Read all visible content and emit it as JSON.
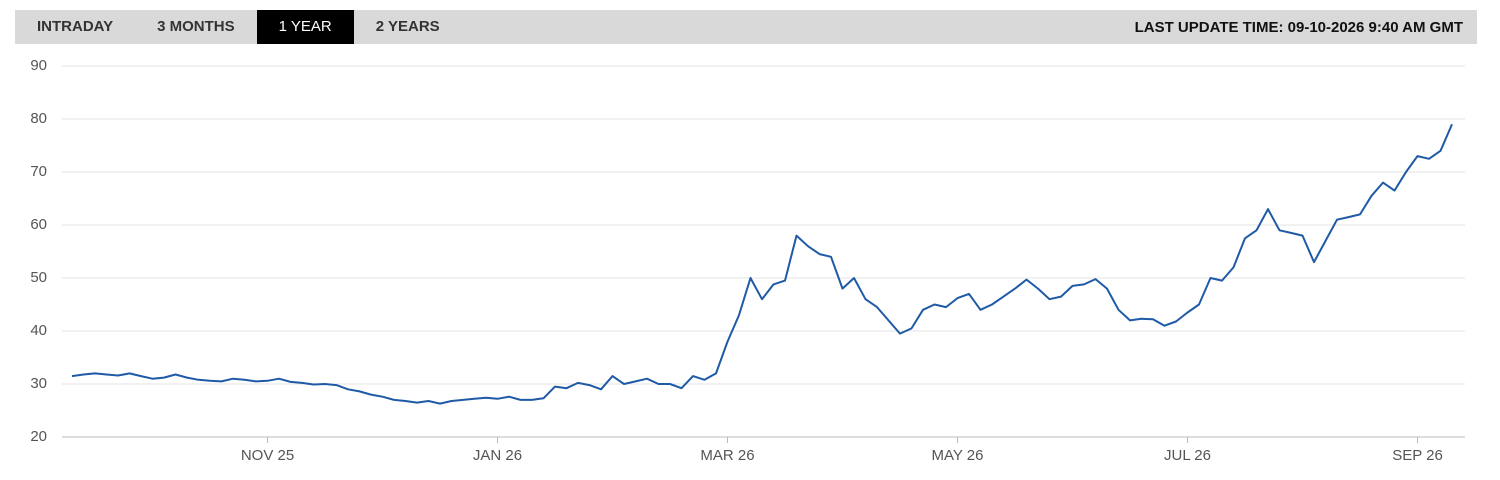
{
  "tabs": [
    "INTRADAY",
    "3 MONTHS",
    "1 YEAR",
    "2 YEARS"
  ],
  "active_tab": 2,
  "last_update": "LAST UPDATE TIME: 09-10-2026 9:40 AM GMT",
  "chart_data": {
    "type": "line",
    "color": "#1f5aa6",
    "grid": true,
    "ylim": [
      20,
      90
    ],
    "yticks": [
      20,
      30,
      40,
      50,
      60,
      70,
      80,
      90
    ],
    "categories": [
      null,
      null,
      null,
      null,
      null,
      null,
      null,
      null,
      null,
      null,
      null,
      null,
      null,
      null,
      null,
      null,
      null,
      "NOV 25",
      null,
      null,
      null,
      null,
      null,
      null,
      null,
      null,
      null,
      null,
      null,
      null,
      null,
      null,
      null,
      null,
      null,
      null,
      null,
      "JAN 26",
      null,
      null,
      null,
      null,
      null,
      null,
      null,
      null,
      null,
      null,
      null,
      null,
      null,
      null,
      null,
      null,
      null,
      null,
      null,
      "MAR 26",
      null,
      null,
      null,
      null,
      null,
      null,
      null,
      null,
      null,
      null,
      null,
      null,
      null,
      null,
      null,
      null,
      null,
      null,
      null,
      "MAY 26",
      null,
      null,
      null,
      null,
      null,
      null,
      null,
      null,
      null,
      null,
      null,
      null,
      null,
      null,
      null,
      null,
      null,
      null,
      null,
      "JUL 26",
      null,
      null,
      null,
      null,
      null,
      null,
      null,
      null,
      null,
      null,
      null,
      null,
      null,
      null,
      null,
      null,
      null,
      null,
      null,
      "SEP 26",
      null,
      null,
      null
    ],
    "values": [
      31.5,
      31.8,
      32,
      31.8,
      31.6,
      32,
      31.5,
      31,
      31.2,
      31.8,
      31.2,
      30.8,
      30.6,
      30.5,
      31,
      30.8,
      30.5,
      30.6,
      31,
      30.4,
      30.2,
      29.9,
      30,
      29.8,
      29,
      28.6,
      28,
      27.6,
      27,
      26.8,
      26.5,
      26.8,
      26.3,
      26.8,
      27,
      27.2,
      27.4,
      27.2,
      27.6,
      27,
      27,
      27.3,
      29.5,
      29.2,
      30.2,
      29.8,
      29,
      31.5,
      30,
      30.5,
      31,
      30,
      30,
      29.2,
      31.5,
      30.8,
      32,
      38,
      43,
      50,
      46,
      48.8,
      49.5,
      58,
      56,
      54.5,
      54,
      48,
      50,
      46,
      44.5,
      42,
      39.5,
      40.5,
      44,
      45,
      44.5,
      46.2,
      47,
      44,
      45,
      46.5,
      48,
      49.7,
      48,
      46,
      46.5,
      48.5,
      48.8,
      49.8,
      48,
      44,
      42,
      42.3,
      42.2,
      41,
      41.8,
      43.5,
      45,
      50,
      49.5,
      52,
      57.5,
      59,
      63,
      59,
      58.5,
      58,
      53,
      57,
      61,
      61.5,
      62,
      65.5,
      68,
      66.5,
      70,
      73,
      72.5,
      74,
      79
    ]
  }
}
